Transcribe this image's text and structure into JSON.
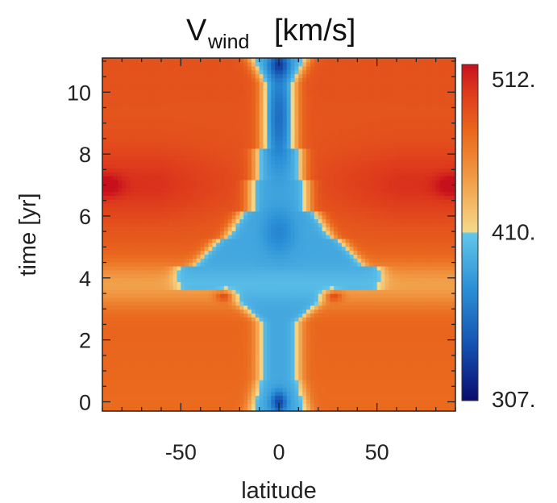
{
  "chart_data": {
    "type": "heatmap",
    "title": {
      "symbol": "V",
      "subscript": "wind",
      "units": "[km/s]"
    },
    "xlabel": "latitude",
    "ylabel": "time [yr]",
    "xlim": [
      -90,
      90
    ],
    "ylim": [
      -0.3,
      11.1
    ],
    "x_ticks": [
      -50,
      0,
      50
    ],
    "x_tick_labels": [
      "-50",
      "0",
      "50"
    ],
    "y_ticks": [
      0,
      2,
      4,
      6,
      8,
      10
    ],
    "y_tick_labels": [
      "0",
      "2",
      "4",
      "6",
      "8",
      "10"
    ],
    "colorbar": {
      "min": 307,
      "mid": 410,
      "max": 512,
      "tick_labels": [
        "512.",
        "410.",
        "307."
      ]
    },
    "colormap": [
      {
        "value": 307,
        "color": "#0b0a6e"
      },
      {
        "value": 340,
        "color": "#1450b0"
      },
      {
        "value": 375,
        "color": "#2a8fd6"
      },
      {
        "value": 409,
        "color": "#63c6ea"
      },
      {
        "value": 410,
        "color": "#f5d98a"
      },
      {
        "value": 440,
        "color": "#f2a04a"
      },
      {
        "value": 470,
        "color": "#ea6a1e"
      },
      {
        "value": 495,
        "color": "#de3a1c"
      },
      {
        "value": 512,
        "color": "#c8101c"
      }
    ],
    "field_description": {
      "lat_grid": [
        -90,
        -80,
        -70,
        -60,
        -50,
        -40,
        -30,
        -20,
        -10,
        0,
        10,
        20,
        30,
        40,
        50,
        60,
        70,
        80,
        90
      ],
      "time_grid": [
        0,
        1,
        2,
        3,
        3.5,
        4,
        5,
        6,
        7,
        8,
        9,
        10,
        11
      ]
    }
  }
}
